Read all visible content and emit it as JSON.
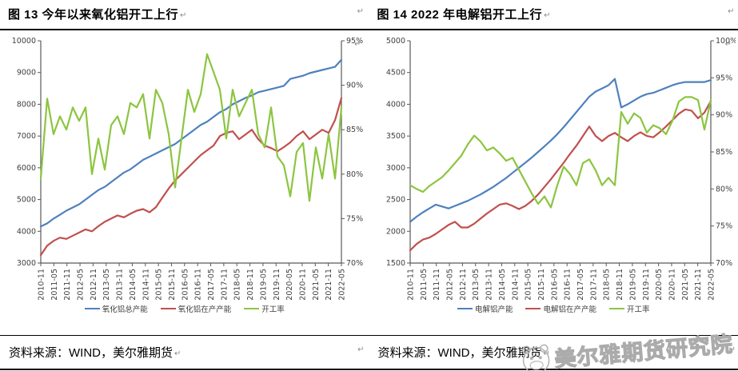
{
  "header": {
    "left_title": "图 13  今年以来氧化铝开工上行",
    "right_title": "图 14  2022 年电解铝开工上行",
    "paragraph_mark": "↵"
  },
  "footer": {
    "left_source": "资料来源：WIND，美尔雅期货",
    "right_source": "资料来源：WIND，美尔雅期货"
  },
  "watermark": {
    "text": "美尔雅期货研究院",
    "logo": "mascot-face-icon"
  },
  "colors": {
    "blue": "#4F81BD",
    "red": "#C0504D",
    "green": "#8CC540",
    "axis": "#595959",
    "label": "#3F3F3F"
  },
  "chart_data": [
    {
      "type": "line",
      "title": "图 13  今年以来氧化铝开工上行",
      "grid": false,
      "legend_position": "bottom",
      "x_categories": [
        "2010-11",
        "2011-05",
        "2011-11",
        "2012-05",
        "2012-11",
        "2013-05",
        "2013-11",
        "2014-05",
        "2014-11",
        "2015-05",
        "2015-11",
        "2016-05",
        "2016-11",
        "2017-05",
        "2017-11",
        "2018-05",
        "2018-11",
        "2019-05",
        "2019-11",
        "2020-05",
        "2020-11",
        "2021-05",
        "2021-11",
        "2022-05"
      ],
      "axes": {
        "left": {
          "min": 3000,
          "max": 10000,
          "ticks": [
            3000,
            4000,
            5000,
            6000,
            7000,
            8000,
            9000,
            10000
          ]
        },
        "right": {
          "min": 70,
          "max": 95,
          "ticks": [
            70,
            75,
            80,
            85,
            90,
            95
          ],
          "suffix": "%"
        }
      },
      "series": [
        {
          "name": "氧化铝总产能",
          "color": "#4F81BD",
          "axis": "left",
          "values": [
            4150,
            4250,
            4400,
            4520,
            4650,
            4750,
            4850,
            5000,
            5150,
            5300,
            5400,
            5550,
            5700,
            5850,
            5950,
            6100,
            6250,
            6350,
            6450,
            6550,
            6650,
            6750,
            6900,
            7050,
            7200,
            7350,
            7450,
            7600,
            7750,
            7850,
            8000,
            8100,
            8200,
            8280,
            8380,
            8430,
            8480,
            8530,
            8580,
            8800,
            8850,
            8900,
            8980,
            9030,
            9080,
            9130,
            9180,
            9400
          ]
        },
        {
          "name": "氧化铝在产产能",
          "color": "#C0504D",
          "axis": "left",
          "values": [
            3250,
            3550,
            3700,
            3800,
            3760,
            3860,
            3960,
            4060,
            4000,
            4160,
            4300,
            4400,
            4500,
            4440,
            4550,
            4650,
            4700,
            4600,
            4760,
            5060,
            5350,
            5600,
            5800,
            6000,
            6200,
            6400,
            6550,
            6700,
            7000,
            7100,
            7150,
            6900,
            7050,
            7200,
            6900,
            6700,
            6620,
            6520,
            6650,
            6800,
            7000,
            7150,
            6900,
            7050,
            7200,
            7100,
            7500,
            8200
          ]
        },
        {
          "name": "开工率",
          "color": "#8CC540",
          "axis": "right",
          "values": [
            79.5,
            88.5,
            84.5,
            86.5,
            85.0,
            87.5,
            86.0,
            87.5,
            80.0,
            84.0,
            80.5,
            85.5,
            86.5,
            84.5,
            88.0,
            87.5,
            89.0,
            84.0,
            89.5,
            88.0,
            84.5,
            78.5,
            84.0,
            89.5,
            87.0,
            89.0,
            93.5,
            91.5,
            89.5,
            84.0,
            89.5,
            86.5,
            88.0,
            89.5,
            84.5,
            83.0,
            87.5,
            82.0,
            81.0,
            77.5,
            82.5,
            83.5,
            77.0,
            83.0,
            79.5,
            84.5,
            79.5,
            87.5
          ]
        }
      ]
    },
    {
      "type": "line",
      "title": "图 14  2022 年电解铝开工上行",
      "grid": false,
      "legend_position": "bottom",
      "x_categories": [
        "2010-11",
        "2011-05",
        "2011-11",
        "2012-05",
        "2012-11",
        "2013-05",
        "2013-11",
        "2014-05",
        "2014-11",
        "2015-05",
        "2015-11",
        "2016-05",
        "2016-11",
        "2017-05",
        "2017-11",
        "2018-05",
        "2018-11",
        "2019-05",
        "2019-11",
        "2020-05",
        "2020-11",
        "2021-05",
        "2021-11",
        "2022-05"
      ],
      "axes": {
        "left": {
          "min": 1500,
          "max": 5000,
          "ticks": [
            1500,
            2000,
            2500,
            3000,
            3500,
            4000,
            4500,
            5000
          ]
        },
        "right": {
          "min": 70,
          "max": 100,
          "ticks": [
            70,
            75,
            80,
            85,
            90,
            95,
            100
          ],
          "suffix": "%"
        }
      },
      "series": [
        {
          "name": "电解铝产能",
          "color": "#4F81BD",
          "axis": "left",
          "values": [
            2150,
            2230,
            2300,
            2360,
            2420,
            2390,
            2360,
            2400,
            2440,
            2480,
            2530,
            2580,
            2640,
            2700,
            2770,
            2840,
            2920,
            3000,
            3080,
            3160,
            3250,
            3340,
            3430,
            3530,
            3640,
            3760,
            3880,
            4000,
            4120,
            4200,
            4250,
            4300,
            4400,
            3950,
            4000,
            4060,
            4120,
            4160,
            4180,
            4220,
            4260,
            4300,
            4330,
            4350,
            4350,
            4350,
            4350,
            4380
          ]
        },
        {
          "name": "电解铝在产产能",
          "color": "#C0504D",
          "axis": "left",
          "values": [
            1700,
            1800,
            1870,
            1900,
            1960,
            2030,
            2100,
            2150,
            2060,
            2060,
            2120,
            2200,
            2280,
            2350,
            2420,
            2440,
            2400,
            2350,
            2400,
            2480,
            2580,
            2700,
            2820,
            2950,
            3080,
            3220,
            3350,
            3500,
            3650,
            3500,
            3420,
            3500,
            3550,
            3480,
            3420,
            3500,
            3560,
            3500,
            3480,
            3560,
            3650,
            3750,
            3850,
            3920,
            3900,
            3780,
            3870,
            4050
          ]
        },
        {
          "name": "开工率",
          "color": "#8CC540",
          "axis": "right",
          "values": [
            80.5,
            80.0,
            79.6,
            80.4,
            81.0,
            81.6,
            82.5,
            83.5,
            84.5,
            86.0,
            87.2,
            86.4,
            85.2,
            85.6,
            84.8,
            83.8,
            84.2,
            82.6,
            81.0,
            79.4,
            78.0,
            79.0,
            77.5,
            80.5,
            83.0,
            82.0,
            80.5,
            83.5,
            84.0,
            82.5,
            80.5,
            81.5,
            80.5,
            90.4,
            88.8,
            90.2,
            89.6,
            87.6,
            88.6,
            88.2,
            87.4,
            89.2,
            91.8,
            92.4,
            92.4,
            92.0,
            88.0,
            92.0
          ]
        }
      ]
    }
  ]
}
